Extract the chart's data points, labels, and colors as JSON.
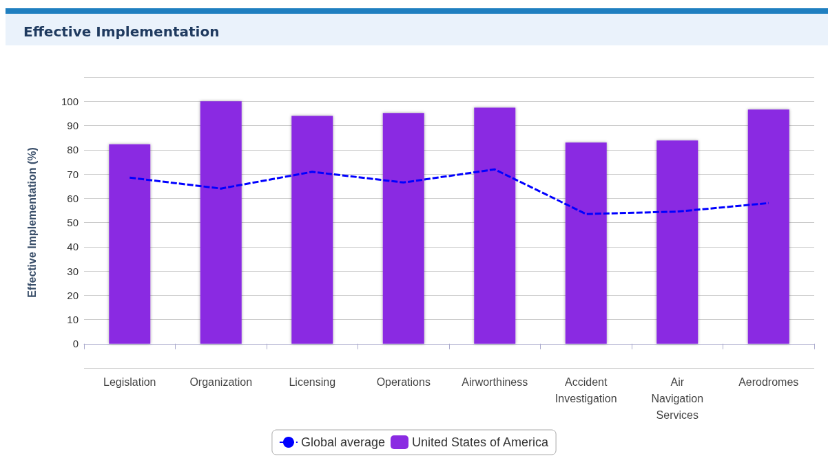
{
  "chart_data": {
    "type": "bar",
    "title": "Effective Implementation",
    "ylabel": "Effective Implementation (%)",
    "categories": [
      "Legislation",
      "Organization",
      "Licensing",
      "Operations",
      "Airworthiness",
      "Accident Investigation",
      "Air Navigation Services",
      "Aerodromes"
    ],
    "series": [
      {
        "name": "Global average",
        "type": "line",
        "color": "#0000ff",
        "line_style": "dashed",
        "values": [
          68.5,
          64,
          70.9,
          66.5,
          71.9,
          53.5,
          54.5,
          58
        ]
      },
      {
        "name": "United States of America",
        "color": "#8a2be2",
        "values": [
          82.3,
          100,
          94,
          95.2,
          97.4,
          83,
          83.8,
          96.6
        ]
      }
    ],
    "ylim": [
      -10,
      110
    ],
    "yticks": [
      {
        "value": -10,
        "label": null
      },
      0,
      10,
      20,
      30,
      40,
      50,
      60,
      70,
      80,
      90,
      100,
      {
        "value": 110,
        "label": null
      }
    ],
    "grid": "y",
    "legend": "bottom"
  }
}
